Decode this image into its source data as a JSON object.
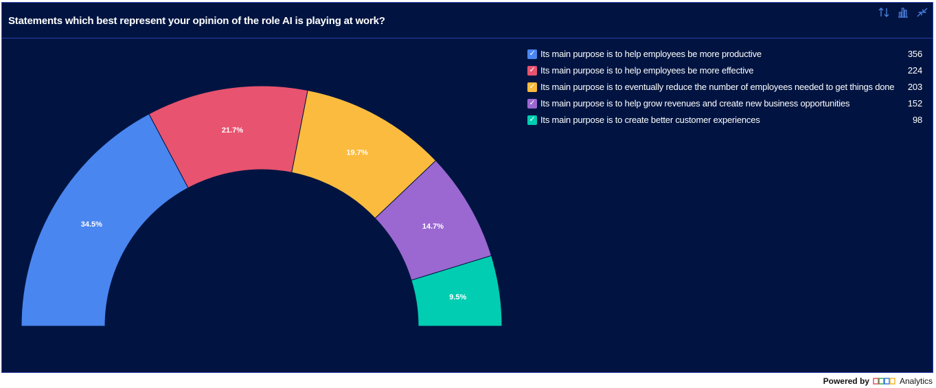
{
  "title": "Statements which best represent your opinion of the role AI is playing at work?",
  "toolbar": [
    {
      "icon": "sort-icon"
    },
    {
      "icon": "bar-chart-icon"
    },
    {
      "icon": "collapse-icon"
    }
  ],
  "chart_data": {
    "type": "pie",
    "variant": "semi-donut",
    "title": "Statements which best represent your opinion of the role AI is playing at work?",
    "series": [
      {
        "name": "Its main purpose is to help employees be more productive",
        "value": 356,
        "percent_label": "34.5%",
        "color": "#4a86f0"
      },
      {
        "name": "Its main purpose is to help employees be more effective",
        "value": 224,
        "percent_label": "21.7%",
        "color": "#e8536f"
      },
      {
        "name": "Its main purpose is to eventually reduce the number of employees needed to get things done",
        "value": 203,
        "percent_label": "19.7%",
        "color": "#fbbb3e"
      },
      {
        "name": "Its main purpose is to help grow revenues and create new business opportunities",
        "value": 152,
        "percent_label": "14.7%",
        "color": "#9a68d0"
      },
      {
        "name": "Its main purpose is to create better customer experiences",
        "value": 98,
        "percent_label": "9.5%",
        "color": "#00cdb1"
      }
    ],
    "legend_position": "top-right"
  },
  "footer": {
    "powered_by": "Powered by",
    "brand": "Analytics"
  }
}
